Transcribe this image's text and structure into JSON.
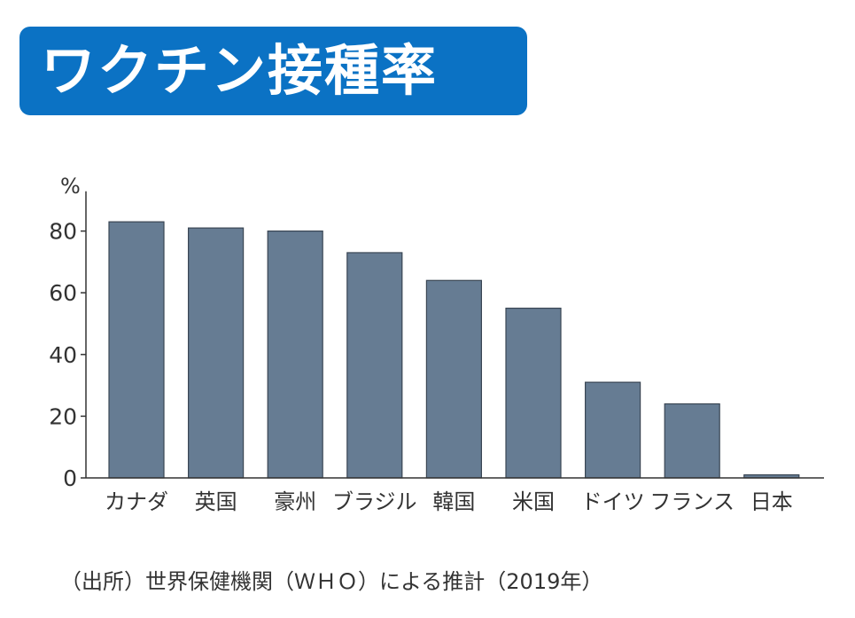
{
  "title": "ワクチン接種率",
  "source": "（出所）世界保健機関（ＷＨＯ）による推計（2019年）",
  "colors": {
    "banner": "#0b72c4",
    "bar": "#667c93",
    "bar_stroke": "#3a4654",
    "axis": "#333333"
  },
  "chart_data": {
    "type": "bar",
    "unit_label": "%",
    "categories": [
      "カナダ",
      "英国",
      "豪州",
      "ブラジル",
      "韓国",
      "米国",
      "ドイツ",
      "フランス",
      "日本"
    ],
    "values": [
      83,
      81,
      80,
      73,
      64,
      55,
      31,
      24,
      1
    ],
    "ylim": [
      0,
      90
    ],
    "yticks": [
      0,
      20,
      40,
      60,
      80
    ],
    "grid": false,
    "legend": "none"
  }
}
